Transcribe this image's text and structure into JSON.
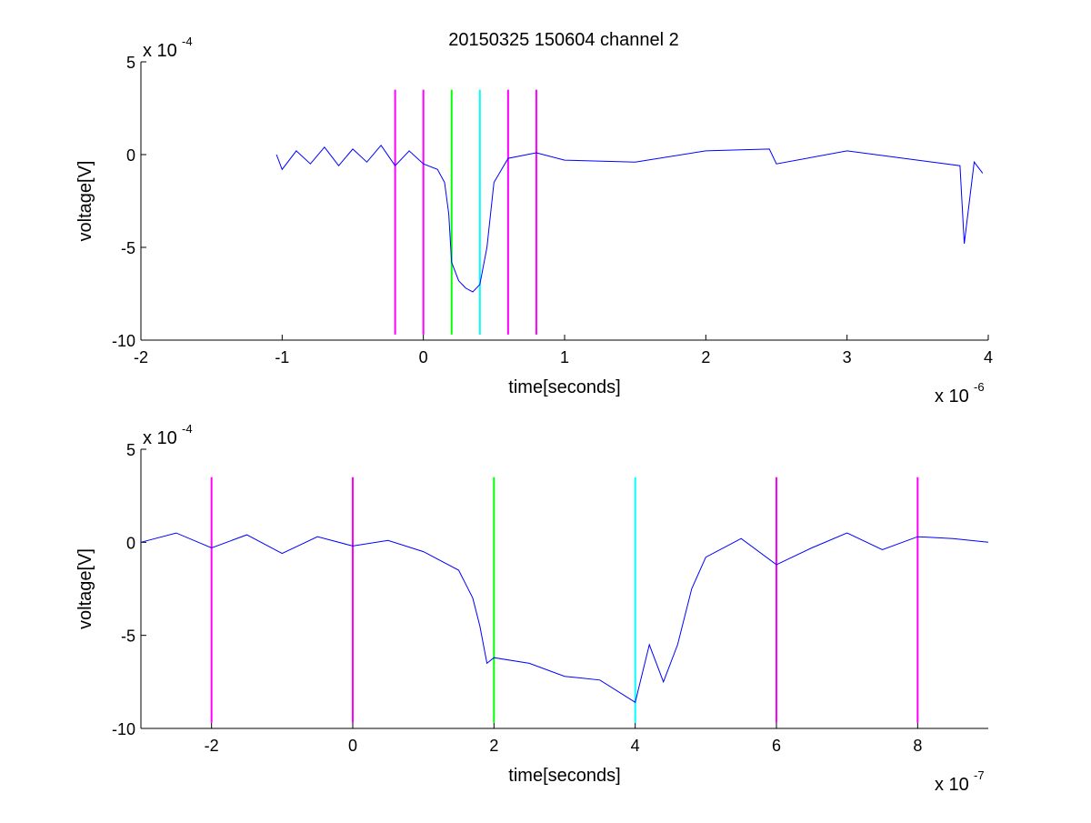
{
  "figure": {
    "title": "20150325 150604 channel 2"
  },
  "colors": {
    "signal": "#0000ff",
    "magenta": "#ff00ff",
    "green": "#00ff00",
    "cyan": "#00ffff",
    "axis": "#000000"
  },
  "chart_data": [
    {
      "type": "line",
      "xlabel": "time[seconds]",
      "ylabel": "voltage[V]",
      "x_multiplier": "x 10",
      "x_exponent": "-6",
      "y_multiplier": "x 10",
      "y_exponent": "-4",
      "xlim": [
        -2e-06,
        4e-06
      ],
      "ylim": [
        -10,
        5
      ],
      "x_ticks": [
        -2,
        -1,
        0,
        1,
        2,
        3,
        4
      ],
      "y_ticks": [
        5,
        0,
        -5,
        -10
      ],
      "grid": false,
      "signal": {
        "x": [
          -1.04e-06,
          -1e-06,
          -9e-07,
          -8e-07,
          -7e-07,
          -6e-07,
          -5e-07,
          -4e-07,
          -3e-07,
          -2e-07,
          -1e-07,
          0.0,
          1e-07,
          1.5e-07,
          1.8e-07,
          2e-07,
          2.5e-07,
          3e-07,
          3.5e-07,
          4e-07,
          4.5e-07,
          5e-07,
          6e-07,
          8e-07,
          1e-06,
          1.5e-06,
          2e-06,
          2.45e-06,
          2.5e-06,
          3e-06,
          3.5e-06,
          3.8e-06,
          3.83e-06,
          3.9e-06,
          3.96e-06
        ],
        "y": [
          0,
          -0.8,
          0.2,
          -0.5,
          0.4,
          -0.6,
          0.3,
          -0.4,
          0.5,
          -0.6,
          0.2,
          -0.5,
          -0.8,
          -1.5,
          -3.2,
          -5.8,
          -6.8,
          -7.2,
          -7.4,
          -7.0,
          -5.0,
          -1.5,
          -0.2,
          0.1,
          -0.3,
          -0.4,
          0.2,
          0.3,
          -0.5,
          0.2,
          -0.3,
          -0.6,
          -4.8,
          -0.4,
          -1.0
        ]
      },
      "vlines": [
        {
          "x": -2e-07,
          "color": "magenta"
        },
        {
          "x": 0.0,
          "color": "magenta"
        },
        {
          "x": 2e-07,
          "color": "green"
        },
        {
          "x": 4e-07,
          "color": "cyan"
        },
        {
          "x": 6e-07,
          "color": "magenta"
        },
        {
          "x": 8e-07,
          "color": "magenta"
        }
      ],
      "vline_range": [
        -9.7,
        3.5
      ]
    },
    {
      "type": "line",
      "xlabel": "time[seconds]",
      "ylabel": "voltage[V]",
      "x_multiplier": "x 10",
      "x_exponent": "-7",
      "y_multiplier": "x 10",
      "y_exponent": "-4",
      "xlim": [
        -3e-07,
        9e-07
      ],
      "ylim": [
        -10,
        5
      ],
      "x_ticks": [
        -2,
        0,
        2,
        4,
        6,
        8
      ],
      "y_ticks": [
        5,
        0,
        -5,
        -10
      ],
      "grid": false,
      "signal": {
        "x": [
          -3e-07,
          -2.5e-07,
          -2e-07,
          -1.5e-07,
          -1e-07,
          -5e-08,
          0.0,
          5e-08,
          1e-07,
          1.5e-07,
          1.7e-07,
          1.8e-07,
          1.9e-07,
          2e-07,
          2.5e-07,
          3e-07,
          3.5e-07,
          4e-07,
          4.2e-07,
          4.4e-07,
          4.6e-07,
          4.8e-07,
          5e-07,
          5.5e-07,
          6e-07,
          6.5e-07,
          7e-07,
          7.5e-07,
          8e-07,
          8.5e-07,
          9e-07
        ],
        "y": [
          0.0,
          0.5,
          -0.3,
          0.4,
          -0.6,
          0.3,
          -0.2,
          0.1,
          -0.5,
          -1.5,
          -3.0,
          -4.5,
          -6.5,
          -6.2,
          -6.5,
          -7.2,
          -7.4,
          -8.6,
          -5.5,
          -7.5,
          -5.5,
          -2.5,
          -0.8,
          0.2,
          -1.2,
          -0.3,
          0.5,
          -0.4,
          0.3,
          0.2,
          0.0
        ]
      },
      "vlines": [
        {
          "x": -2e-07,
          "color": "magenta"
        },
        {
          "x": 0.0,
          "color": "magenta"
        },
        {
          "x": 2e-07,
          "color": "green"
        },
        {
          "x": 4e-07,
          "color": "cyan"
        },
        {
          "x": 6e-07,
          "color": "magenta"
        },
        {
          "x": 8e-07,
          "color": "magenta"
        }
      ],
      "vline_range": [
        -9.7,
        3.5
      ]
    }
  ]
}
